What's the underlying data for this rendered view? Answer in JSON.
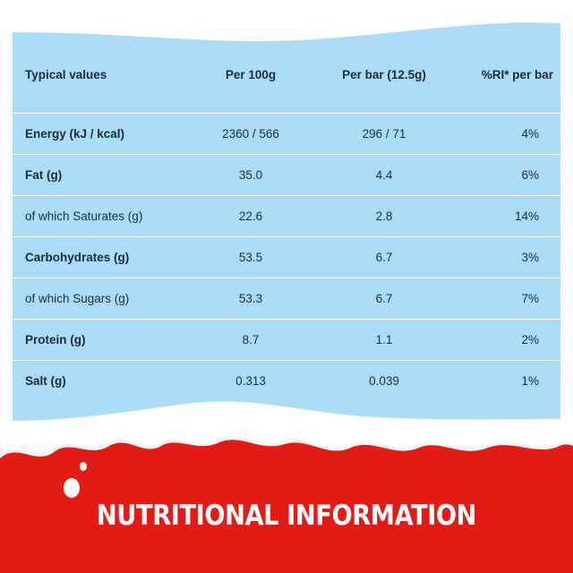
{
  "table": {
    "headers": [
      "Typical values",
      "Per 100g",
      "Per bar (12.5g)",
      "%RI* per bar"
    ],
    "rows": [
      {
        "label": "Energy (kJ / kcal)",
        "per100g": "2360 / 566",
        "perbar": "296 / 71",
        "ri": "4%"
      },
      {
        "label": "Fat (g)",
        "per100g": "35.0",
        "perbar": "4.4",
        "ri": "6%"
      },
      {
        "label": "of which Saturates (g)",
        "per100g": "22.6",
        "perbar": "2.8",
        "ri": "14%"
      },
      {
        "label": "Carbohydrates (g)",
        "per100g": "53.5",
        "perbar": "6.7",
        "ri": "3%"
      },
      {
        "label": "of which Sugars (g)",
        "per100g": "53.3",
        "perbar": "6.7",
        "ri": "7%"
      },
      {
        "label": "Protein (g)",
        "per100g": "8.7",
        "perbar": "1.1",
        "ri": "2%"
      },
      {
        "label": "Salt (g)",
        "per100g": "0.313",
        "perbar": "0.039",
        "ri": "1%"
      }
    ]
  },
  "footer": {
    "title": "NUTRITIONAL INFORMATION"
  },
  "colors": {
    "panel": "#aadcf8",
    "red": "#e31b17",
    "milk": "#ffffff",
    "text": "#1f2a33"
  }
}
